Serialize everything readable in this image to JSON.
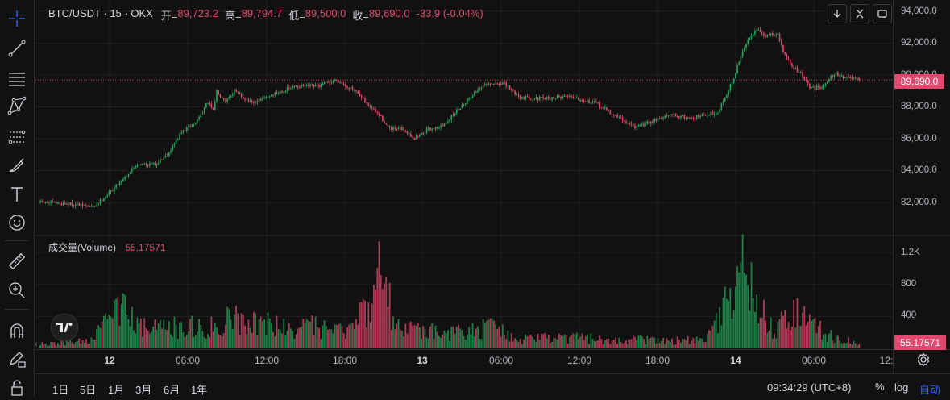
{
  "header": {
    "symbol": "BTC/USDT · 15 · OKX",
    "open_label": "开=",
    "open_value": "89,723.2",
    "high_label": "高=",
    "high_value": "89,794.7",
    "low_label": "低=",
    "low_value": "89,500.0",
    "close_label": "收=",
    "close_value": "89,690.0",
    "change_value": "-33.9 (-0.04%)"
  },
  "volume_legend": {
    "label": "成交量(Volume)",
    "value": "55.17571"
  },
  "price_axis": {
    "ticks": [
      "94,000.0",
      "92,000.0",
      "90,000.0",
      "88,000.0",
      "86,000.0",
      "84,000.0",
      "82,000.0"
    ],
    "current_price_tag": "89,690.0"
  },
  "volume_axis": {
    "ticks": [
      "1.2K",
      "800",
      "400"
    ],
    "current_volume_tag": "55.17571"
  },
  "time_axis": {
    "labels": [
      {
        "text": "12",
        "bold": true
      },
      {
        "text": "06:00",
        "bold": false
      },
      {
        "text": "12:00",
        "bold": false
      },
      {
        "text": "18:00",
        "bold": false
      },
      {
        "text": "13",
        "bold": true
      },
      {
        "text": "06:00",
        "bold": false
      },
      {
        "text": "12:00",
        "bold": false
      },
      {
        "text": "18:00",
        "bold": false
      },
      {
        "text": "14",
        "bold": true
      },
      {
        "text": "06:00",
        "bold": false
      },
      {
        "text": "12:",
        "bold": false
      }
    ]
  },
  "bottom_bar": {
    "ranges": [
      "1日",
      "5日",
      "1月",
      "3月",
      "6月",
      "1年"
    ],
    "clock": "09:34:29 (UTC+8)",
    "percent_label": "%",
    "log_label": "log",
    "auto_label": "自动"
  },
  "toolbar": {
    "tools": [
      "crosshair-icon",
      "trend-line-icon",
      "horizontal-lines-icon",
      "pattern-icon",
      "fib-icon",
      "brush-icon",
      "text-tool-icon",
      "emoji-icon",
      "ruler-icon",
      "zoom-in-icon",
      "magnet-icon",
      "lock-pencil-icon",
      "lock-icon"
    ]
  },
  "colors": {
    "background": "#111111",
    "up": "#26a65b",
    "down": "#e0496d",
    "grid": "#1f1f1f",
    "text": "#b2b5be"
  },
  "chart_data": {
    "type": "candlestick",
    "title": "BTC/USDT · 15 · OKX",
    "ylim": [
      80800,
      94400
    ],
    "volume_ylim": [
      0,
      1450
    ],
    "current_price": 89690.0,
    "x_labels": [
      "12",
      "06:00",
      "12:00",
      "18:00",
      "13",
      "06:00",
      "12:00",
      "18:00",
      "14",
      "06:00"
    ],
    "close_path_anchors": [
      [
        0,
        82000
      ],
      [
        18,
        81900
      ],
      [
        30,
        81700
      ],
      [
        40,
        82700
      ],
      [
        55,
        84400
      ],
      [
        65,
        84400
      ],
      [
        72,
        85000
      ],
      [
        80,
        86400
      ],
      [
        88,
        87000
      ],
      [
        95,
        88300
      ],
      [
        98,
        87700
      ],
      [
        100,
        89000
      ],
      [
        105,
        88400
      ],
      [
        110,
        89000
      ],
      [
        120,
        88200
      ],
      [
        132,
        88800
      ],
      [
        145,
        89300
      ],
      [
        158,
        89300
      ],
      [
        168,
        89700
      ],
      [
        178,
        89000
      ],
      [
        185,
        88200
      ],
      [
        192,
        87500
      ],
      [
        198,
        86600
      ],
      [
        206,
        86600
      ],
      [
        212,
        86000
      ],
      [
        220,
        86600
      ],
      [
        228,
        86800
      ],
      [
        238,
        88000
      ],
      [
        250,
        89300
      ],
      [
        262,
        89500
      ],
      [
        272,
        88600
      ],
      [
        285,
        88500
      ],
      [
        300,
        88700
      ],
      [
        315,
        88200
      ],
      [
        328,
        87300
      ],
      [
        338,
        86700
      ],
      [
        348,
        87200
      ],
      [
        358,
        87500
      ],
      [
        368,
        87300
      ],
      [
        378,
        87500
      ],
      [
        384,
        87700
      ],
      [
        388,
        88600
      ],
      [
        393,
        89800
      ],
      [
        397,
        91200
      ],
      [
        402,
        92400
      ],
      [
        406,
        92900
      ],
      [
        410,
        92400
      ],
      [
        415,
        92600
      ],
      [
        418,
        92500
      ],
      [
        421,
        91500
      ],
      [
        426,
        90500
      ],
      [
        431,
        90100
      ],
      [
        436,
        89200
      ],
      [
        442,
        89200
      ],
      [
        450,
        90100
      ],
      [
        458,
        89800
      ],
      [
        464,
        89690
      ]
    ],
    "volume_profile_anchors": [
      [
        0,
        60
      ],
      [
        30,
        120
      ],
      [
        40,
        500
      ],
      [
        50,
        650
      ],
      [
        60,
        300
      ],
      [
        100,
        350
      ],
      [
        110,
        500
      ],
      [
        140,
        300
      ],
      [
        150,
        350
      ],
      [
        170,
        250
      ],
      [
        180,
        450
      ],
      [
        195,
        1300
      ],
      [
        200,
        350
      ],
      [
        220,
        250
      ],
      [
        240,
        250
      ],
      [
        260,
        330
      ],
      [
        270,
        150
      ],
      [
        300,
        160
      ],
      [
        330,
        140
      ],
      [
        370,
        120
      ],
      [
        380,
        250
      ],
      [
        393,
        900
      ],
      [
        398,
        1340
      ],
      [
        405,
        700
      ],
      [
        415,
        300
      ],
      [
        428,
        550
      ],
      [
        436,
        400
      ],
      [
        450,
        150
      ],
      [
        464,
        80
      ]
    ],
    "candle_count": 465
  }
}
